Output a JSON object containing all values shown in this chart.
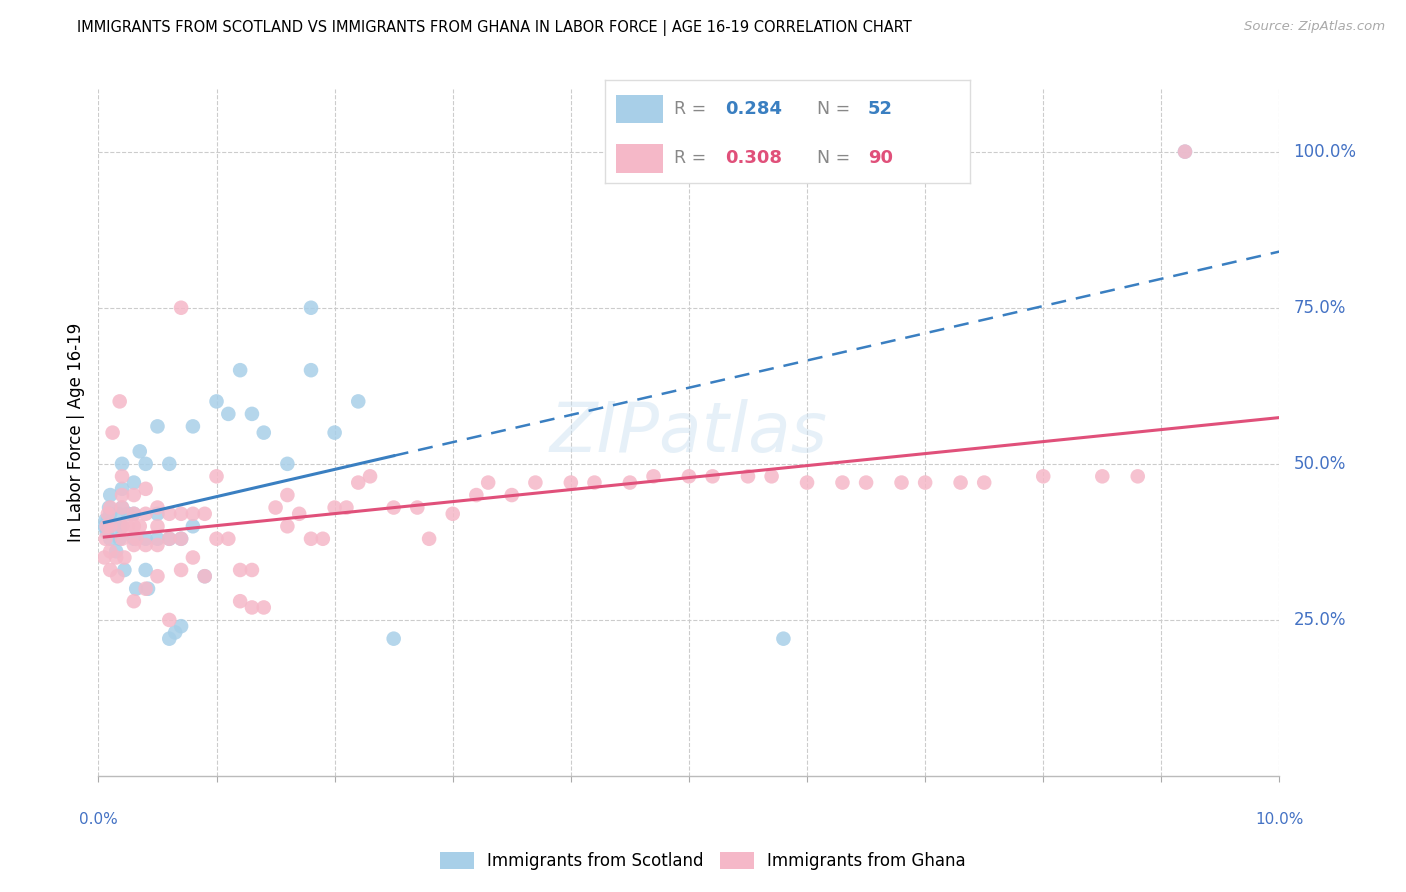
{
  "title": "IMMIGRANTS FROM SCOTLAND VS IMMIGRANTS FROM GHANA IN LABOR FORCE | AGE 16-19 CORRELATION CHART",
  "source": "Source: ZipAtlas.com",
  "ylabel": "In Labor Force | Age 16-19",
  "scotland_R": "0.284",
  "scotland_N": "52",
  "ghana_R": "0.308",
  "ghana_N": "90",
  "scotland_color": "#a8cfe8",
  "ghana_color": "#f5b8c8",
  "scotland_line_color": "#3a7fc1",
  "ghana_line_color": "#e0507a",
  "xlim": [
    0.0,
    0.1
  ],
  "ylim": [
    0.0,
    1.1
  ],
  "right_ytick_labels": [
    "100.0%",
    "75.0%",
    "50.0%",
    "25.0%"
  ],
  "right_ytick_values": [
    1.0,
    0.75,
    0.5,
    0.25
  ],
  "scotland_x": [
    0.0005,
    0.0006,
    0.0007,
    0.0008,
    0.0009,
    0.001,
    0.001,
    0.001,
    0.0015,
    0.0016,
    0.0017,
    0.0018,
    0.002,
    0.002,
    0.002,
    0.002,
    0.0022,
    0.0025,
    0.003,
    0.003,
    0.003,
    0.0032,
    0.0035,
    0.004,
    0.004,
    0.004,
    0.0042,
    0.005,
    0.005,
    0.005,
    0.006,
    0.006,
    0.006,
    0.0065,
    0.007,
    0.007,
    0.008,
    0.008,
    0.009,
    0.01,
    0.011,
    0.012,
    0.013,
    0.014,
    0.016,
    0.018,
    0.018,
    0.02,
    0.022,
    0.025,
    0.058,
    0.092
  ],
  "scotland_y": [
    0.4,
    0.41,
    0.39,
    0.41,
    0.43,
    0.38,
    0.42,
    0.45,
    0.36,
    0.4,
    0.42,
    0.38,
    0.4,
    0.43,
    0.46,
    0.5,
    0.33,
    0.42,
    0.38,
    0.42,
    0.47,
    0.3,
    0.52,
    0.33,
    0.5,
    0.38,
    0.3,
    0.38,
    0.42,
    0.56,
    0.22,
    0.38,
    0.5,
    0.23,
    0.24,
    0.38,
    0.4,
    0.56,
    0.32,
    0.6,
    0.58,
    0.65,
    0.58,
    0.55,
    0.5,
    0.75,
    0.65,
    0.55,
    0.6,
    0.22,
    0.22,
    1.0
  ],
  "ghana_x": [
    0.0005,
    0.0006,
    0.0007,
    0.0008,
    0.001,
    0.001,
    0.001,
    0.001,
    0.0012,
    0.0015,
    0.0016,
    0.0018,
    0.002,
    0.002,
    0.002,
    0.002,
    0.002,
    0.0022,
    0.0025,
    0.003,
    0.003,
    0.003,
    0.003,
    0.003,
    0.0032,
    0.0035,
    0.004,
    0.004,
    0.004,
    0.004,
    0.005,
    0.005,
    0.005,
    0.005,
    0.006,
    0.006,
    0.006,
    0.007,
    0.007,
    0.007,
    0.007,
    0.008,
    0.008,
    0.009,
    0.009,
    0.01,
    0.01,
    0.011,
    0.012,
    0.012,
    0.013,
    0.013,
    0.014,
    0.015,
    0.016,
    0.016,
    0.017,
    0.018,
    0.019,
    0.02,
    0.021,
    0.022,
    0.023,
    0.025,
    0.027,
    0.028,
    0.03,
    0.032,
    0.033,
    0.035,
    0.037,
    0.04,
    0.042,
    0.045,
    0.047,
    0.05,
    0.052,
    0.055,
    0.057,
    0.06,
    0.063,
    0.065,
    0.068,
    0.07,
    0.073,
    0.075,
    0.08,
    0.085,
    0.088,
    0.092
  ],
  "ghana_y": [
    0.35,
    0.38,
    0.4,
    0.42,
    0.33,
    0.36,
    0.4,
    0.43,
    0.55,
    0.35,
    0.32,
    0.6,
    0.38,
    0.4,
    0.43,
    0.45,
    0.48,
    0.35,
    0.4,
    0.37,
    0.4,
    0.42,
    0.45,
    0.28,
    0.38,
    0.4,
    0.3,
    0.37,
    0.42,
    0.46,
    0.32,
    0.37,
    0.4,
    0.43,
    0.25,
    0.38,
    0.42,
    0.33,
    0.38,
    0.42,
    0.75,
    0.35,
    0.42,
    0.32,
    0.42,
    0.38,
    0.48,
    0.38,
    0.28,
    0.33,
    0.27,
    0.33,
    0.27,
    0.43,
    0.4,
    0.45,
    0.42,
    0.38,
    0.38,
    0.43,
    0.43,
    0.47,
    0.48,
    0.43,
    0.43,
    0.38,
    0.42,
    0.45,
    0.47,
    0.45,
    0.47,
    0.47,
    0.47,
    0.47,
    0.48,
    0.48,
    0.48,
    0.48,
    0.48,
    0.47,
    0.47,
    0.47,
    0.47,
    0.47,
    0.47,
    0.47,
    0.48,
    0.48,
    0.48,
    1.0
  ]
}
